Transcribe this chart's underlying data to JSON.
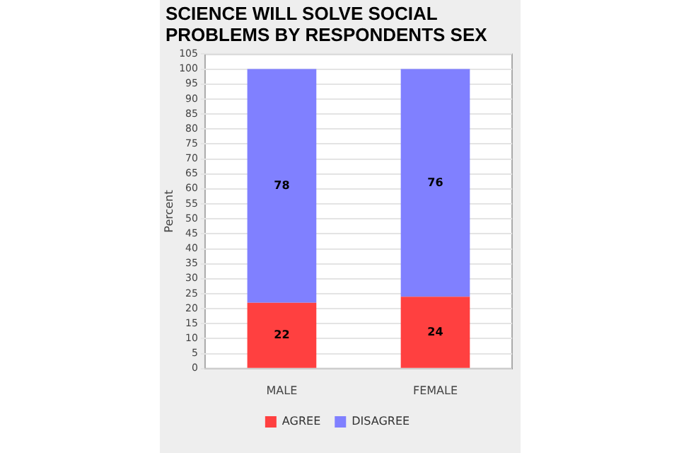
{
  "chart_data": {
    "type": "bar",
    "title": "SCIENCE WILL SOLVE SOCIAL PROBLEMS BY RESPONDENTS SEX",
    "ylabel": "Percent",
    "categories": [
      "MALE",
      "FEMALE"
    ],
    "stacked": true,
    "series": [
      {
        "name": "AGREE",
        "color": "#ff4040",
        "values": [
          22,
          24
        ]
      },
      {
        "name": "DISAGREE",
        "color": "#8080ff",
        "values": [
          78,
          76
        ]
      }
    ],
    "ylim": [
      0,
      105
    ],
    "yticks": [
      0,
      5,
      10,
      15,
      20,
      25,
      30,
      35,
      40,
      45,
      50,
      55,
      60,
      65,
      70,
      75,
      80,
      85,
      90,
      95,
      100,
      105
    ],
    "grid": "y",
    "legend": "bottom",
    "data_labels": true
  }
}
